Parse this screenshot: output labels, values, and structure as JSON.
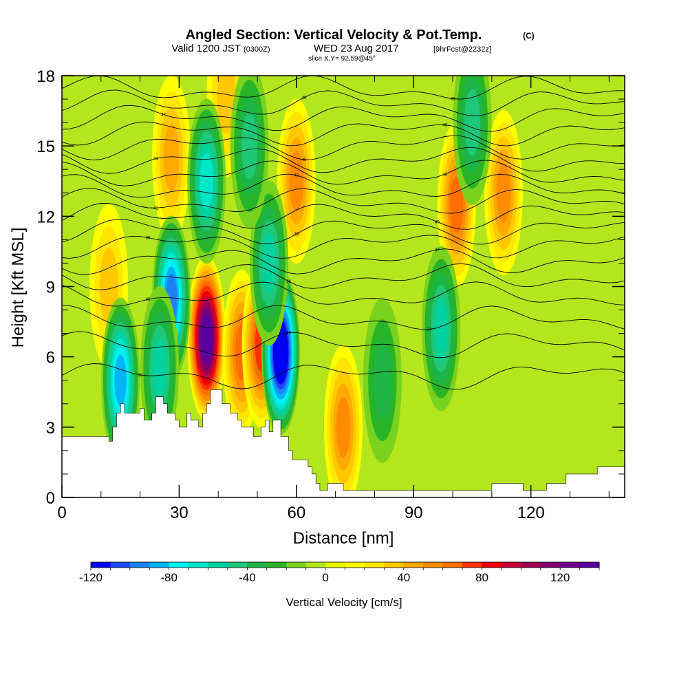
{
  "header": {
    "title": "Angled Section: Vertical Velocity & Pot.Temp.",
    "title_unit": "(C)",
    "valid_prefix": "Valid 1200 JST",
    "valid_zulu": "(0300Z)",
    "valid_date": "WED 23 Aug 2017",
    "forecast": "[9hrFcst@2232z]",
    "slice": "slice X,Y= 92,59@45°"
  },
  "chart_data": {
    "type": "heatmap",
    "xlabel": "Distance [nm]",
    "ylabel": "Height [Kft MSL]",
    "xlim": [
      0,
      144
    ],
    "ylim": [
      0,
      18
    ],
    "x_ticks": [
      "0",
      "30",
      "60",
      "90",
      "120"
    ],
    "y_ticks": [
      "0",
      "3",
      "6",
      "9",
      "12",
      "15",
      "18"
    ],
    "colorbar": {
      "label": "Vertical Velocity [cm/s]",
      "range": [
        -120,
        140
      ],
      "step": 10,
      "tick_labels": [
        "-120",
        "-80",
        "-40",
        "0",
        "40",
        "80",
        "120"
      ],
      "colors": [
        "#0000f5",
        "#1e46f5",
        "#1e82f5",
        "#00b4f5",
        "#00f0f5",
        "#00e6c8",
        "#00d2a0",
        "#1ec878",
        "#1eb446",
        "#28b428",
        "#78d21e",
        "#b4e61e",
        "#e6f500",
        "#ffff00",
        "#ffe600",
        "#ffc800",
        "#ffaa00",
        "#ff8c00",
        "#ff6e00",
        "#ff3200",
        "#f00000",
        "#c8003c",
        "#a00050",
        "#82006e",
        "#6e008c",
        "#5a00a0"
      ]
    },
    "terrain_kft": [
      [
        0,
        2.6
      ],
      [
        12,
        2.6
      ],
      [
        12,
        2.4
      ],
      [
        13,
        2.4
      ],
      [
        13,
        3.0
      ],
      [
        14,
        3.0
      ],
      [
        14,
        3.6
      ],
      [
        15,
        3.6
      ],
      [
        15,
        4.0
      ],
      [
        16,
        4.0
      ],
      [
        16,
        3.6
      ],
      [
        20,
        3.6
      ],
      [
        20,
        3.8
      ],
      [
        21,
        3.8
      ],
      [
        21,
        3.3
      ],
      [
        23,
        3.3
      ],
      [
        23,
        3.6
      ],
      [
        24,
        3.6
      ],
      [
        24,
        4.3
      ],
      [
        26,
        4.3
      ],
      [
        26,
        4.0
      ],
      [
        27,
        4.0
      ],
      [
        27,
        3.6
      ],
      [
        29,
        3.6
      ],
      [
        29,
        3.3
      ],
      [
        30,
        3.3
      ],
      [
        30,
        3.0
      ],
      [
        32,
        3.0
      ],
      [
        32,
        3.6
      ],
      [
        33,
        3.6
      ],
      [
        33,
        3.3
      ],
      [
        35,
        3.3
      ],
      [
        35,
        3.0
      ],
      [
        36,
        3.0
      ],
      [
        36,
        3.6
      ],
      [
        37,
        3.6
      ],
      [
        37,
        4.0
      ],
      [
        38,
        4.0
      ],
      [
        38,
        4.6
      ],
      [
        41,
        4.6
      ],
      [
        41,
        4.0
      ],
      [
        43,
        4.0
      ],
      [
        43,
        3.6
      ],
      [
        45,
        3.6
      ],
      [
        45,
        3.3
      ],
      [
        46,
        3.3
      ],
      [
        46,
        3.0
      ],
      [
        49,
        3.0
      ],
      [
        49,
        2.6
      ],
      [
        51,
        2.6
      ],
      [
        51,
        3.0
      ],
      [
        52,
        3.0
      ],
      [
        52,
        3.3
      ],
      [
        53,
        3.3
      ],
      [
        53,
        2.8
      ],
      [
        54,
        2.8
      ],
      [
        54,
        3.3
      ],
      [
        56,
        3.3
      ],
      [
        56,
        2.6
      ],
      [
        58,
        2.6
      ],
      [
        58,
        2.0
      ],
      [
        59,
        2.0
      ],
      [
        59,
        1.6
      ],
      [
        63,
        1.6
      ],
      [
        63,
        1.3
      ],
      [
        64,
        1.3
      ],
      [
        64,
        1.0
      ],
      [
        65,
        1.0
      ],
      [
        65,
        0.6
      ],
      [
        66,
        0.6
      ],
      [
        66,
        0.3
      ],
      [
        68,
        0.3
      ],
      [
        68,
        0.6
      ],
      [
        72,
        0.6
      ],
      [
        72,
        0.3
      ],
      [
        78,
        0.3
      ],
      [
        110,
        0.3
      ],
      [
        110,
        0.6
      ],
      [
        118,
        0.6
      ],
      [
        118,
        0.3
      ],
      [
        124,
        0.3
      ],
      [
        124,
        0.6
      ],
      [
        129,
        0.6
      ],
      [
        129,
        1.0
      ],
      [
        137,
        1.0
      ],
      [
        137,
        1.3
      ],
      [
        144,
        1.3
      ]
    ],
    "updrafts": [
      {
        "x": 37,
        "y": 6.8,
        "w": 130
      },
      {
        "x": 46,
        "y": 6.2,
        "w": 60
      },
      {
        "x": 51,
        "y": 6.5,
        "w": 70
      },
      {
        "x": 60,
        "y": 13.5,
        "w": 50
      },
      {
        "x": 28,
        "y": 14.5,
        "w": 40
      },
      {
        "x": 101,
        "y": 12.5,
        "w": 55
      },
      {
        "x": 113,
        "y": 13.0,
        "w": 45
      },
      {
        "x": 72,
        "y": 3.0,
        "w": 45
      },
      {
        "x": 12,
        "y": 9.0,
        "w": 30
      },
      {
        "x": 42,
        "y": 17.2,
        "w": 30
      }
    ],
    "downdrafts": [
      {
        "x": 56,
        "y": 6.2,
        "w": -125
      },
      {
        "x": 28,
        "y": 8.5,
        "w": -90
      },
      {
        "x": 15,
        "y": 5.0,
        "w": -80
      },
      {
        "x": 53,
        "y": 10.0,
        "w": -45
      },
      {
        "x": 37,
        "y": 13.5,
        "w": -60
      },
      {
        "x": 48,
        "y": 15.0,
        "w": -40
      },
      {
        "x": 97,
        "y": 7.2,
        "w": -45
      },
      {
        "x": 105,
        "y": 16.0,
        "w": -35
      },
      {
        "x": 25,
        "y": 5.5,
        "w": -50
      },
      {
        "x": 82,
        "y": 5.0,
        "w": -30
      }
    ],
    "isentropes": [
      {
        "label": "32",
        "y": 5.2
      },
      {
        "label": "33",
        "y": 6.5
      },
      {
        "label": "34",
        "y": 7.6
      },
      {
        "label": "35",
        "y": 8.6
      },
      {
        "label": "36",
        "y": 9.4
      },
      {
        "label": "37",
        "y": 10.1
      },
      {
        "label": "38",
        "y": 10.8
      },
      {
        "label": "39",
        "y": 11.4
      },
      {
        "label": "40",
        "y": 12.0
      },
      {
        "label": "41",
        "y": 12.6
      },
      {
        "label": "42",
        "y": 13.2
      },
      {
        "label": "43",
        "y": 13.8
      },
      {
        "label": "44",
        "y": 14.4
      },
      {
        "label": "45",
        "y": 15.0
      },
      {
        "label": "46",
        "y": 15.6
      },
      {
        "label": "47",
        "y": 16.2
      },
      {
        "label": "48",
        "y": 16.8
      },
      {
        "label": "49",
        "y": 17.4
      }
    ]
  }
}
